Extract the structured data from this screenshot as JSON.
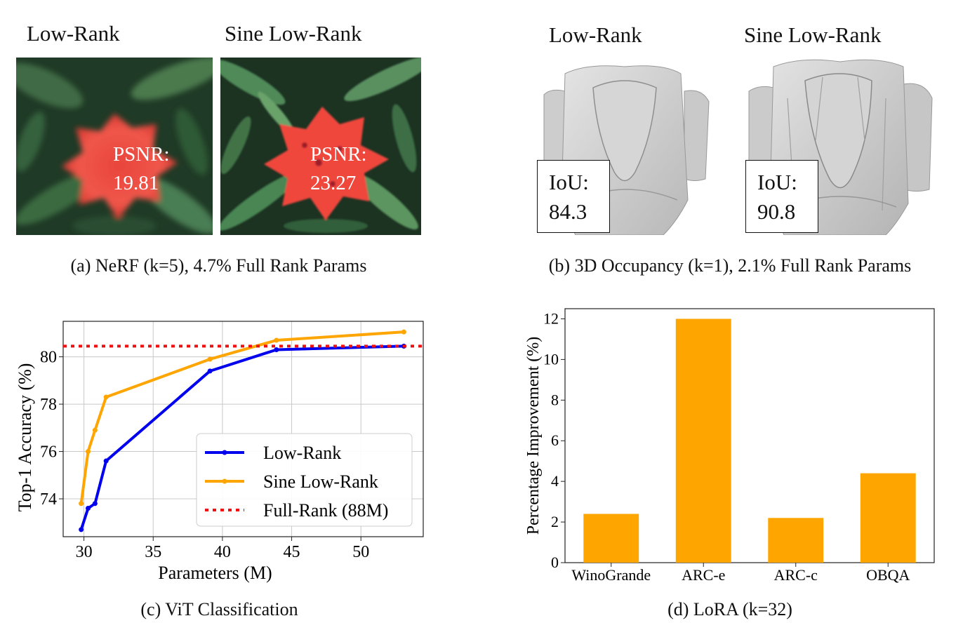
{
  "panel_a": {
    "left_title": "Low-Rank",
    "right_title": "Sine Low-Rank",
    "left_metric_label": "PSNR:",
    "left_metric_value": "19.81",
    "right_metric_label": "PSNR:",
    "right_metric_value": "23.27",
    "caption": "(a) NeRF (k=5), 4.7% Full Rank Params"
  },
  "panel_b": {
    "left_title": "Low-Rank",
    "right_title": "Sine Low-Rank",
    "left_metric_label": "IoU:",
    "left_metric_value": "84.3",
    "right_metric_label": "IoU:",
    "right_metric_value": "90.8",
    "caption": "(b) 3D Occupancy (k=1), 2.1% Full Rank Params"
  },
  "panel_c": {
    "caption": "(c) ViT Classification"
  },
  "panel_d": {
    "caption": "(d) LoRA (k=32)"
  },
  "colors": {
    "low_rank": "#0000ee",
    "sine_low_rank": "#ffa500",
    "full_rank": "#ee1111",
    "bar": "#ffa500"
  },
  "chart_data": [
    {
      "type": "line",
      "xlabel": "Parameters (M)",
      "ylabel": "Top-1 Accuracy (%)",
      "xlim": [
        28.5,
        54.5
      ],
      "ylim": [
        72.4,
        81.5
      ],
      "xticks": [
        30,
        35,
        40,
        45,
        50
      ],
      "yticks": [
        74,
        76,
        78,
        80
      ],
      "grid": true,
      "legend_position": "bottom-right",
      "series": [
        {
          "name": "Low-Rank",
          "x": [
            29.8,
            30.3,
            30.8,
            31.6,
            39.1,
            43.9,
            53.1
          ],
          "y": [
            72.7,
            73.6,
            73.8,
            75.6,
            79.4,
            80.3,
            80.45
          ]
        },
        {
          "name": "Sine Low-Rank",
          "x": [
            29.8,
            30.3,
            30.8,
            31.6,
            39.1,
            43.9,
            53.1
          ],
          "y": [
            73.8,
            76.0,
            76.9,
            78.3,
            79.9,
            80.7,
            81.05
          ]
        },
        {
          "name": "Full-Rank (88M)",
          "y_const": 80.45,
          "style": "dotted"
        }
      ]
    },
    {
      "type": "bar",
      "categories": [
        "WinoGrande",
        "ARC-e",
        "ARC-c",
        "OBQA"
      ],
      "values": [
        2.4,
        12.0,
        2.2,
        4.4
      ],
      "xlabel": "",
      "ylabel": "Percentage Improvement (%)",
      "ylim": [
        0,
        12.5
      ],
      "yticks": [
        0,
        2,
        4,
        6,
        8,
        10,
        12
      ],
      "grid": false
    }
  ]
}
